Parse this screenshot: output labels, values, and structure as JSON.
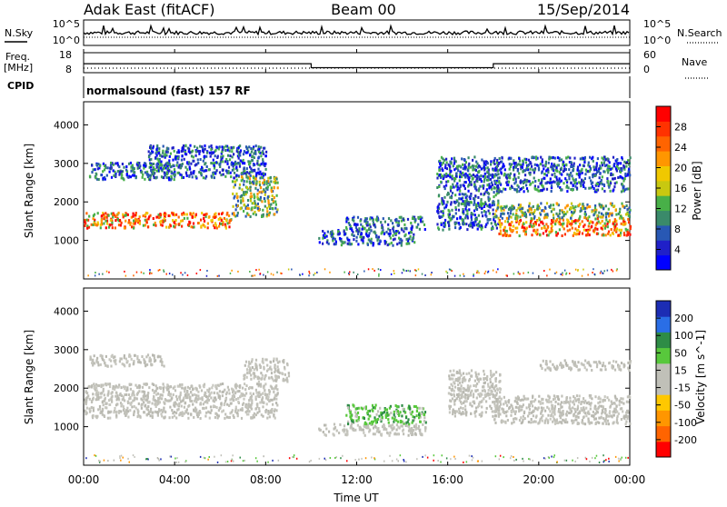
{
  "header": {
    "title": "Adak East (fitACF)",
    "beam": "Beam 00",
    "date": "15/Sep/2014"
  },
  "sky_panel": {
    "left_label": "N.Sky",
    "right_label": "N.Search",
    "tick_top": "10^5",
    "tick_bottom": "10^0"
  },
  "freq_panel": {
    "left_label_1": "Freq.",
    "left_label_2": "[MHz]",
    "right_label": "Nave",
    "left_ticks": [
      "18",
      "8"
    ],
    "right_ticks": [
      "60",
      "0"
    ]
  },
  "cpid_panel": {
    "label": "CPID",
    "program": "normalsound (fast) 157 RF"
  },
  "chart_data": [
    {
      "type": "line",
      "title": "",
      "xlabel": "",
      "ylabel": "Freq. [MHz]",
      "ylim": [
        8,
        18
      ],
      "y2label": "Nave",
      "y2lim": [
        0,
        60
      ],
      "x": [
        "00:00",
        "10:00",
        "10:00",
        "18:00",
        "18:00",
        "24:00"
      ],
      "series": [
        {
          "name": "",
          "values": [
            12.5,
            12.5,
            10.5,
            10.5,
            12.5,
            12.5
          ]
        }
      ]
    },
    {
      "type": "heatmap",
      "title": "",
      "xlabel": "",
      "ylabel": "Slant Range [km]",
      "ylim": [
        0,
        4600
      ],
      "yticks": [
        "1000",
        "2000",
        "3000",
        "4000"
      ],
      "xlim": [
        "00:00",
        "24:00"
      ],
      "colorbar": {
        "label": "Power [dB]",
        "ticks": [
          "4",
          "8",
          "12",
          "16",
          "20",
          "24",
          "28"
        ],
        "colors": [
          "#0000ff",
          "#2020c8",
          "#2858b4",
          "#3a8a6a",
          "#48b048",
          "#c8c810",
          "#f0c800",
          "#ff9600",
          "#ff6400",
          "#ff3200",
          "#ff0000"
        ]
      },
      "regions": [
        {
          "t": [
            0.0,
            6.5
          ],
          "range": [
            1350,
            1750
          ],
          "level": "high"
        },
        {
          "t": [
            6.5,
            8.5
          ],
          "range": [
            1650,
            2700
          ],
          "level": "mid"
        },
        {
          "t": [
            0.2,
            4.0
          ],
          "range": [
            2600,
            3050
          ],
          "level": "low"
        },
        {
          "t": [
            2.8,
            8.0
          ],
          "range": [
            2650,
            3500
          ],
          "level": "low"
        },
        {
          "t": [
            10.3,
            14.5
          ],
          "range": [
            900,
            1300
          ],
          "level": "low"
        },
        {
          "t": [
            11.5,
            15.0
          ],
          "range": [
            1300,
            1650
          ],
          "level": "low"
        },
        {
          "t": [
            15.5,
            18.2
          ],
          "range": [
            1300,
            3200
          ],
          "level": "low"
        },
        {
          "t": [
            18.2,
            24.0
          ],
          "range": [
            1150,
            1600
          ],
          "level": "high"
        },
        {
          "t": [
            18.0,
            24.0
          ],
          "range": [
            1600,
            2000
          ],
          "level": "mid"
        },
        {
          "t": [
            18.0,
            24.0
          ],
          "range": [
            2300,
            3200
          ],
          "level": "low"
        }
      ]
    },
    {
      "type": "heatmap",
      "title": "",
      "xlabel": "Time UT",
      "ylabel": "Slant Range [km]",
      "ylim": [
        0,
        4600
      ],
      "yticks": [
        "1000",
        "2000",
        "3000",
        "4000"
      ],
      "xticks": [
        "00:00",
        "04:00",
        "08:00",
        "12:00",
        "16:00",
        "20:00",
        "00:00"
      ],
      "colorbar": {
        "label": "Velocity [m s^-1]",
        "ticks": [
          "200",
          "100",
          "50",
          "15",
          "-15",
          "-50",
          "-100",
          "-200"
        ],
        "colors": [
          "#1c2db4",
          "#2a6ee6",
          "#2e8c46",
          "#58c83c",
          "#c0c0b8",
          "#c0c0b8",
          "#ffc800",
          "#ff9600",
          "#ff6400",
          "#ff0000"
        ]
      },
      "regions": [
        {
          "t": [
            0.0,
            8.5
          ],
          "range": [
            1250,
            2150
          ],
          "level": "ground"
        },
        {
          "t": [
            7.0,
            9.0
          ],
          "range": [
            2200,
            2800
          ],
          "level": "ground"
        },
        {
          "t": [
            0.2,
            3.5
          ],
          "range": [
            2600,
            2900
          ],
          "level": "ground"
        },
        {
          "t": [
            10.3,
            15.0
          ],
          "range": [
            800,
            1100
          ],
          "level": "ground"
        },
        {
          "t": [
            11.5,
            15.0
          ],
          "range": [
            1100,
            1600
          ],
          "level": "slow-pos"
        },
        {
          "t": [
            16.0,
            18.3
          ],
          "range": [
            1300,
            2500
          ],
          "level": "ground"
        },
        {
          "t": [
            18.0,
            24.0
          ],
          "range": [
            1100,
            1850
          ],
          "level": "ground"
        },
        {
          "t": [
            20.0,
            24.0
          ],
          "range": [
            2500,
            2750
          ],
          "level": "ground"
        }
      ]
    }
  ]
}
